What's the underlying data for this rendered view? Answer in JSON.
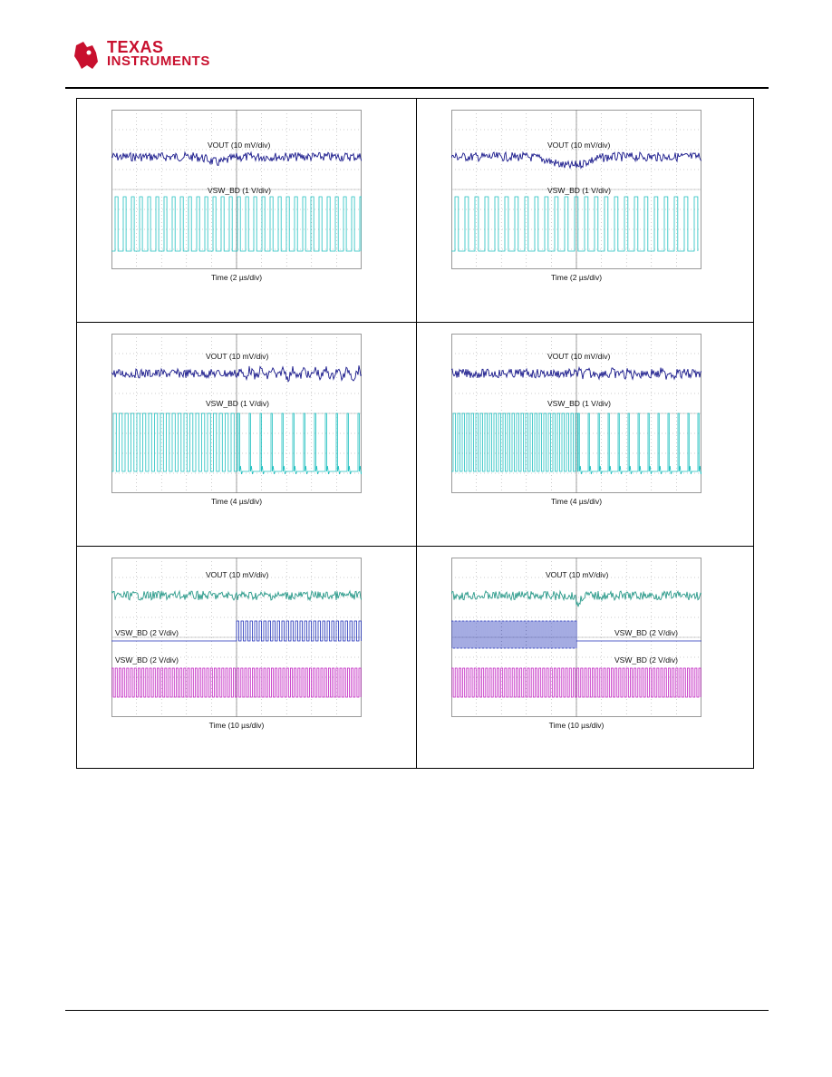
{
  "header": {
    "logo": {
      "line1": "TEXAS",
      "line2": "INSTRUMENTS",
      "icon": "ti-state-icon",
      "color": "#c8102e"
    }
  },
  "colors": {
    "vout_dark": "#1a1a8c",
    "vout_teal": "#2a9a8a",
    "sw_cyan": "#20c0c0",
    "sw_blue": "#1f2fb8",
    "sw_magenta": "#c020c0",
    "grid": "#9a9a9a"
  },
  "figures": [
    {
      "id": "fig-1",
      "trace1": "VOUT (10 mV/div)",
      "trace2": "VSW_BD (1 V/div)",
      "time": "Time (2 µs/div)"
    },
    {
      "id": "fig-2",
      "trace1": "VOUT (10 mV/div)",
      "trace2": "VSW_BD (1 V/div)",
      "time": "Time (2 µs/div)"
    },
    {
      "id": "fig-3",
      "trace1": "VOUT (10 mV/div)",
      "trace2": "VSW_BD (1 V/div)",
      "time": "Time (4 µs/div)"
    },
    {
      "id": "fig-4",
      "trace1": "VOUT (10 mV/div)",
      "trace2": "VSW_BD (1 V/div)",
      "time": "Time (4 µs/div)"
    },
    {
      "id": "fig-5",
      "trace1": "VOUT (10 mV/div)",
      "trace2": "VSW_BD (2 V/div)",
      "trace3": "VSW_BD (2 V/div)",
      "time": "Time (10 µs/div)"
    },
    {
      "id": "fig-6",
      "trace1": "VOUT (10 mV/div)",
      "trace2": "VSW_BD (2 V/div)",
      "trace3": "VSW_BD (2 V/div)",
      "time": "Time (10 µs/div)"
    }
  ]
}
